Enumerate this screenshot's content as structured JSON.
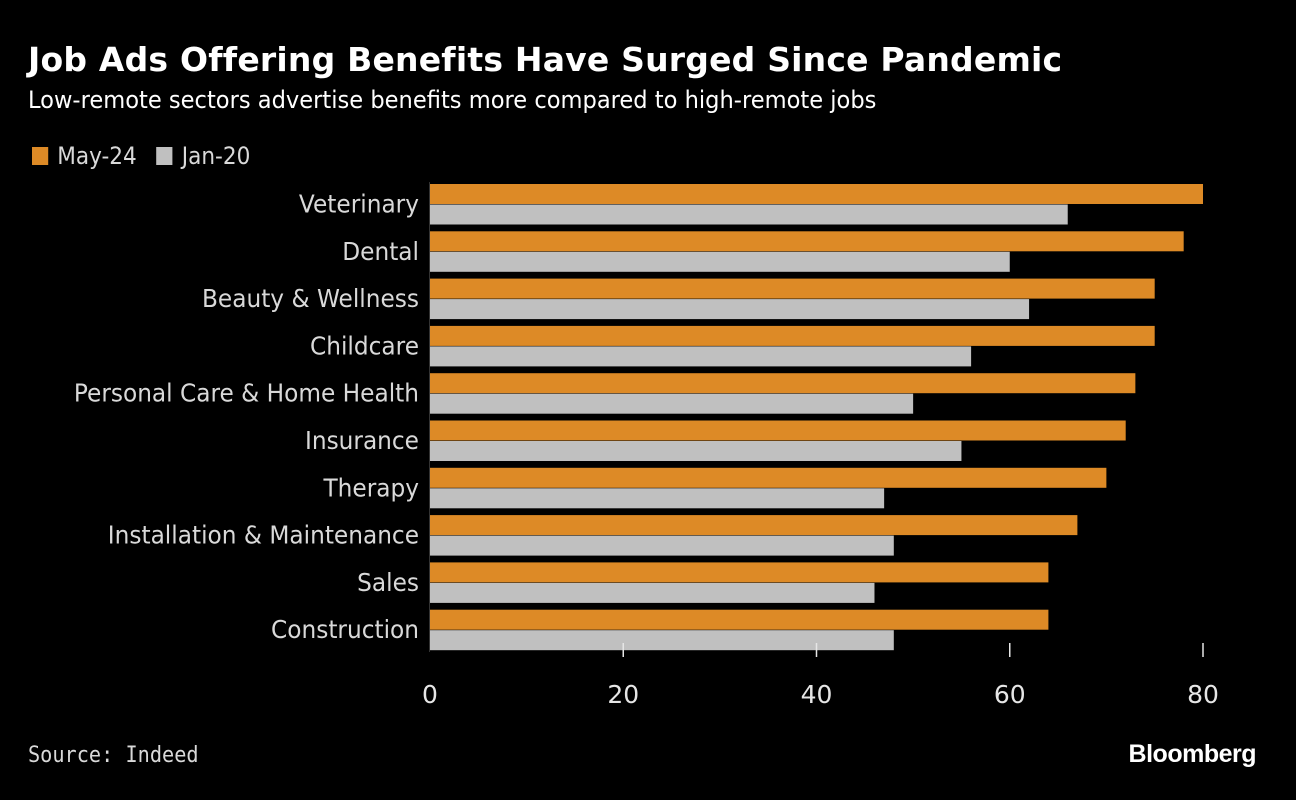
{
  "chart_data": {
    "type": "bar",
    "orientation": "horizontal",
    "title": "Job Ads Offering Benefits Have Surged Since Pandemic",
    "subtitle": "Low-remote sectors advertise benefits more compared to high-remote jobs",
    "categories": [
      "Veterinary",
      "Dental",
      "Beauty & Wellness",
      "Childcare",
      "Personal Care & Home Health",
      "Insurance",
      "Therapy",
      "Installation & Maintenance",
      "Sales",
      "Construction"
    ],
    "series": [
      {
        "name": "May-24",
        "color": "#dd8a26",
        "values": [
          80,
          78,
          75,
          75,
          73,
          72,
          70,
          67,
          64,
          64
        ]
      },
      {
        "name": "Jan-20",
        "color": "#c0c0c0",
        "values": [
          66,
          60,
          62,
          56,
          50,
          55,
          47,
          48,
          46,
          48
        ]
      }
    ],
    "xlabel": "",
    "ylabel": "",
    "xlim": [
      0,
      80
    ],
    "xticks": [
      "0",
      "20",
      "40",
      "60",
      "80"
    ],
    "xtick_values": [
      0,
      20,
      40,
      60,
      80
    ],
    "grid": false,
    "legend_position": "top-left"
  },
  "source": "Source: Indeed",
  "brand": "Bloomberg",
  "colors": {
    "background": "#000000",
    "text": "#ffffff",
    "label": "#d9d9d9"
  }
}
